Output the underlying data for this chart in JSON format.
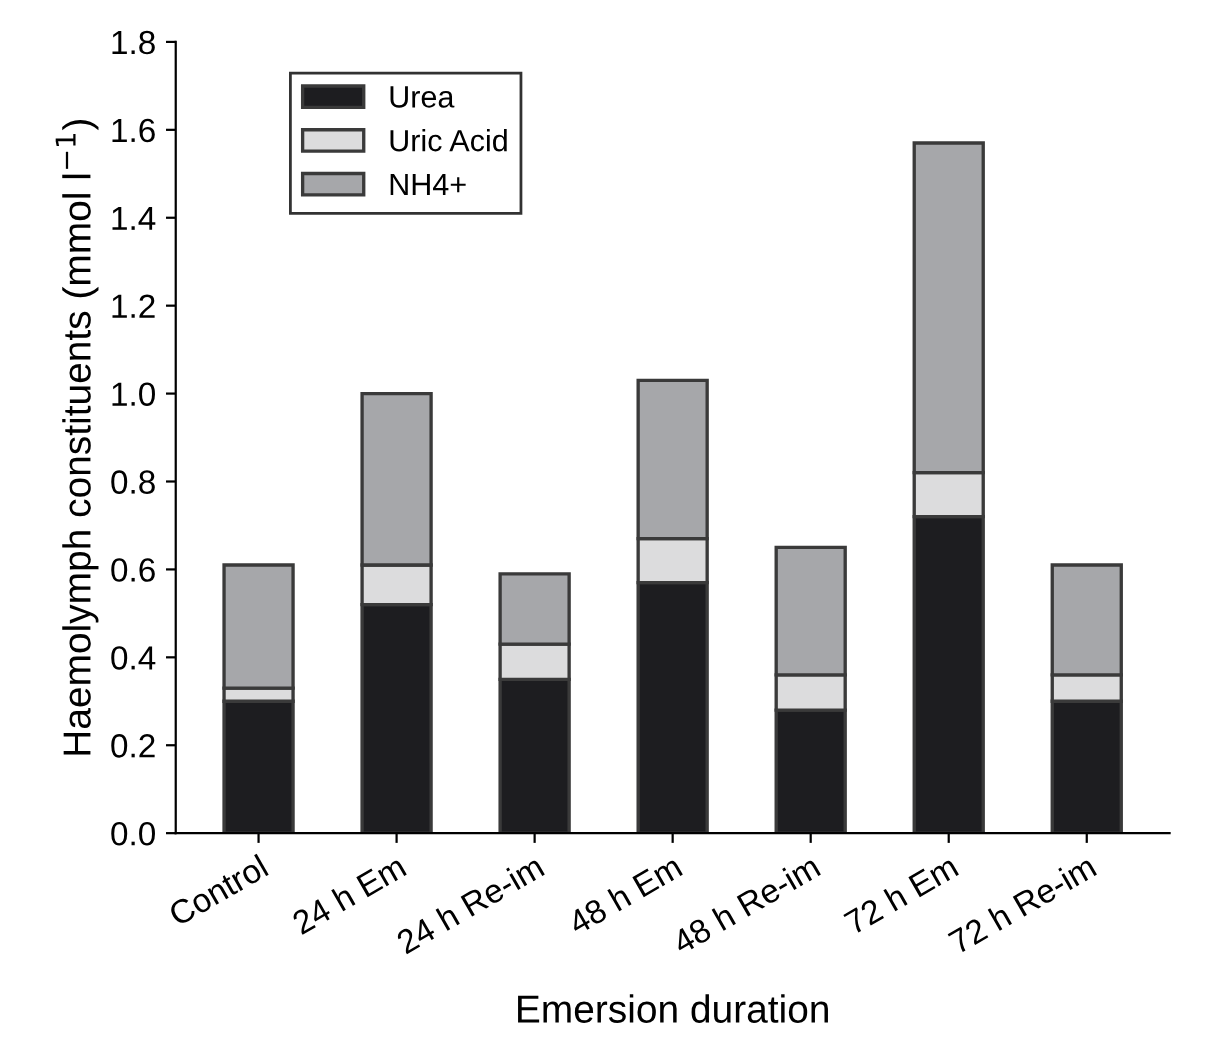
{
  "chart_data": {
    "type": "bar",
    "stacked": true,
    "xlabel": "Emersion duration",
    "ylabel": "Haemolymph constituents (mmol l$^{−1}$)",
    "categories": [
      "Control",
      "24 h Em",
      "24 h Re-im",
      "48 h Em",
      "48 h Re-im",
      "72 h Em",
      "72 h Re-im"
    ],
    "series": [
      {
        "name": "Urea",
        "color": "#1d1d20",
        "values": [
          0.3,
          0.52,
          0.35,
          0.57,
          0.28,
          0.72,
          0.3
        ]
      },
      {
        "name": "Uric Acid",
        "color": "#dcdcdd",
        "values": [
          0.03,
          0.09,
          0.08,
          0.1,
          0.08,
          0.1,
          0.06
        ]
      },
      {
        "name": "NH4+",
        "color": "#a6a7aa",
        "values": [
          0.28,
          0.39,
          0.16,
          0.36,
          0.29,
          0.75,
          0.25
        ]
      }
    ],
    "ylim": [
      0,
      1.8
    ],
    "yticks": [
      {
        "value": 0,
        "label": "0.0"
      },
      {
        "value": 0.2,
        "label": "0.2"
      },
      {
        "value": 0.4,
        "label": "0.4"
      },
      {
        "value": 0.6,
        "label": "0.6"
      },
      {
        "value": 0.8,
        "label": "0.8"
      },
      {
        "value": 1.0,
        "label": "1.0"
      },
      {
        "value": 1.2,
        "label": "1.2"
      },
      {
        "value": 1.4,
        "label": "1.4"
      },
      {
        "value": 1.6,
        "label": "1.6"
      },
      {
        "value": 1.8,
        "label": "1.8"
      }
    ],
    "grid": false,
    "legend": "top left"
  }
}
